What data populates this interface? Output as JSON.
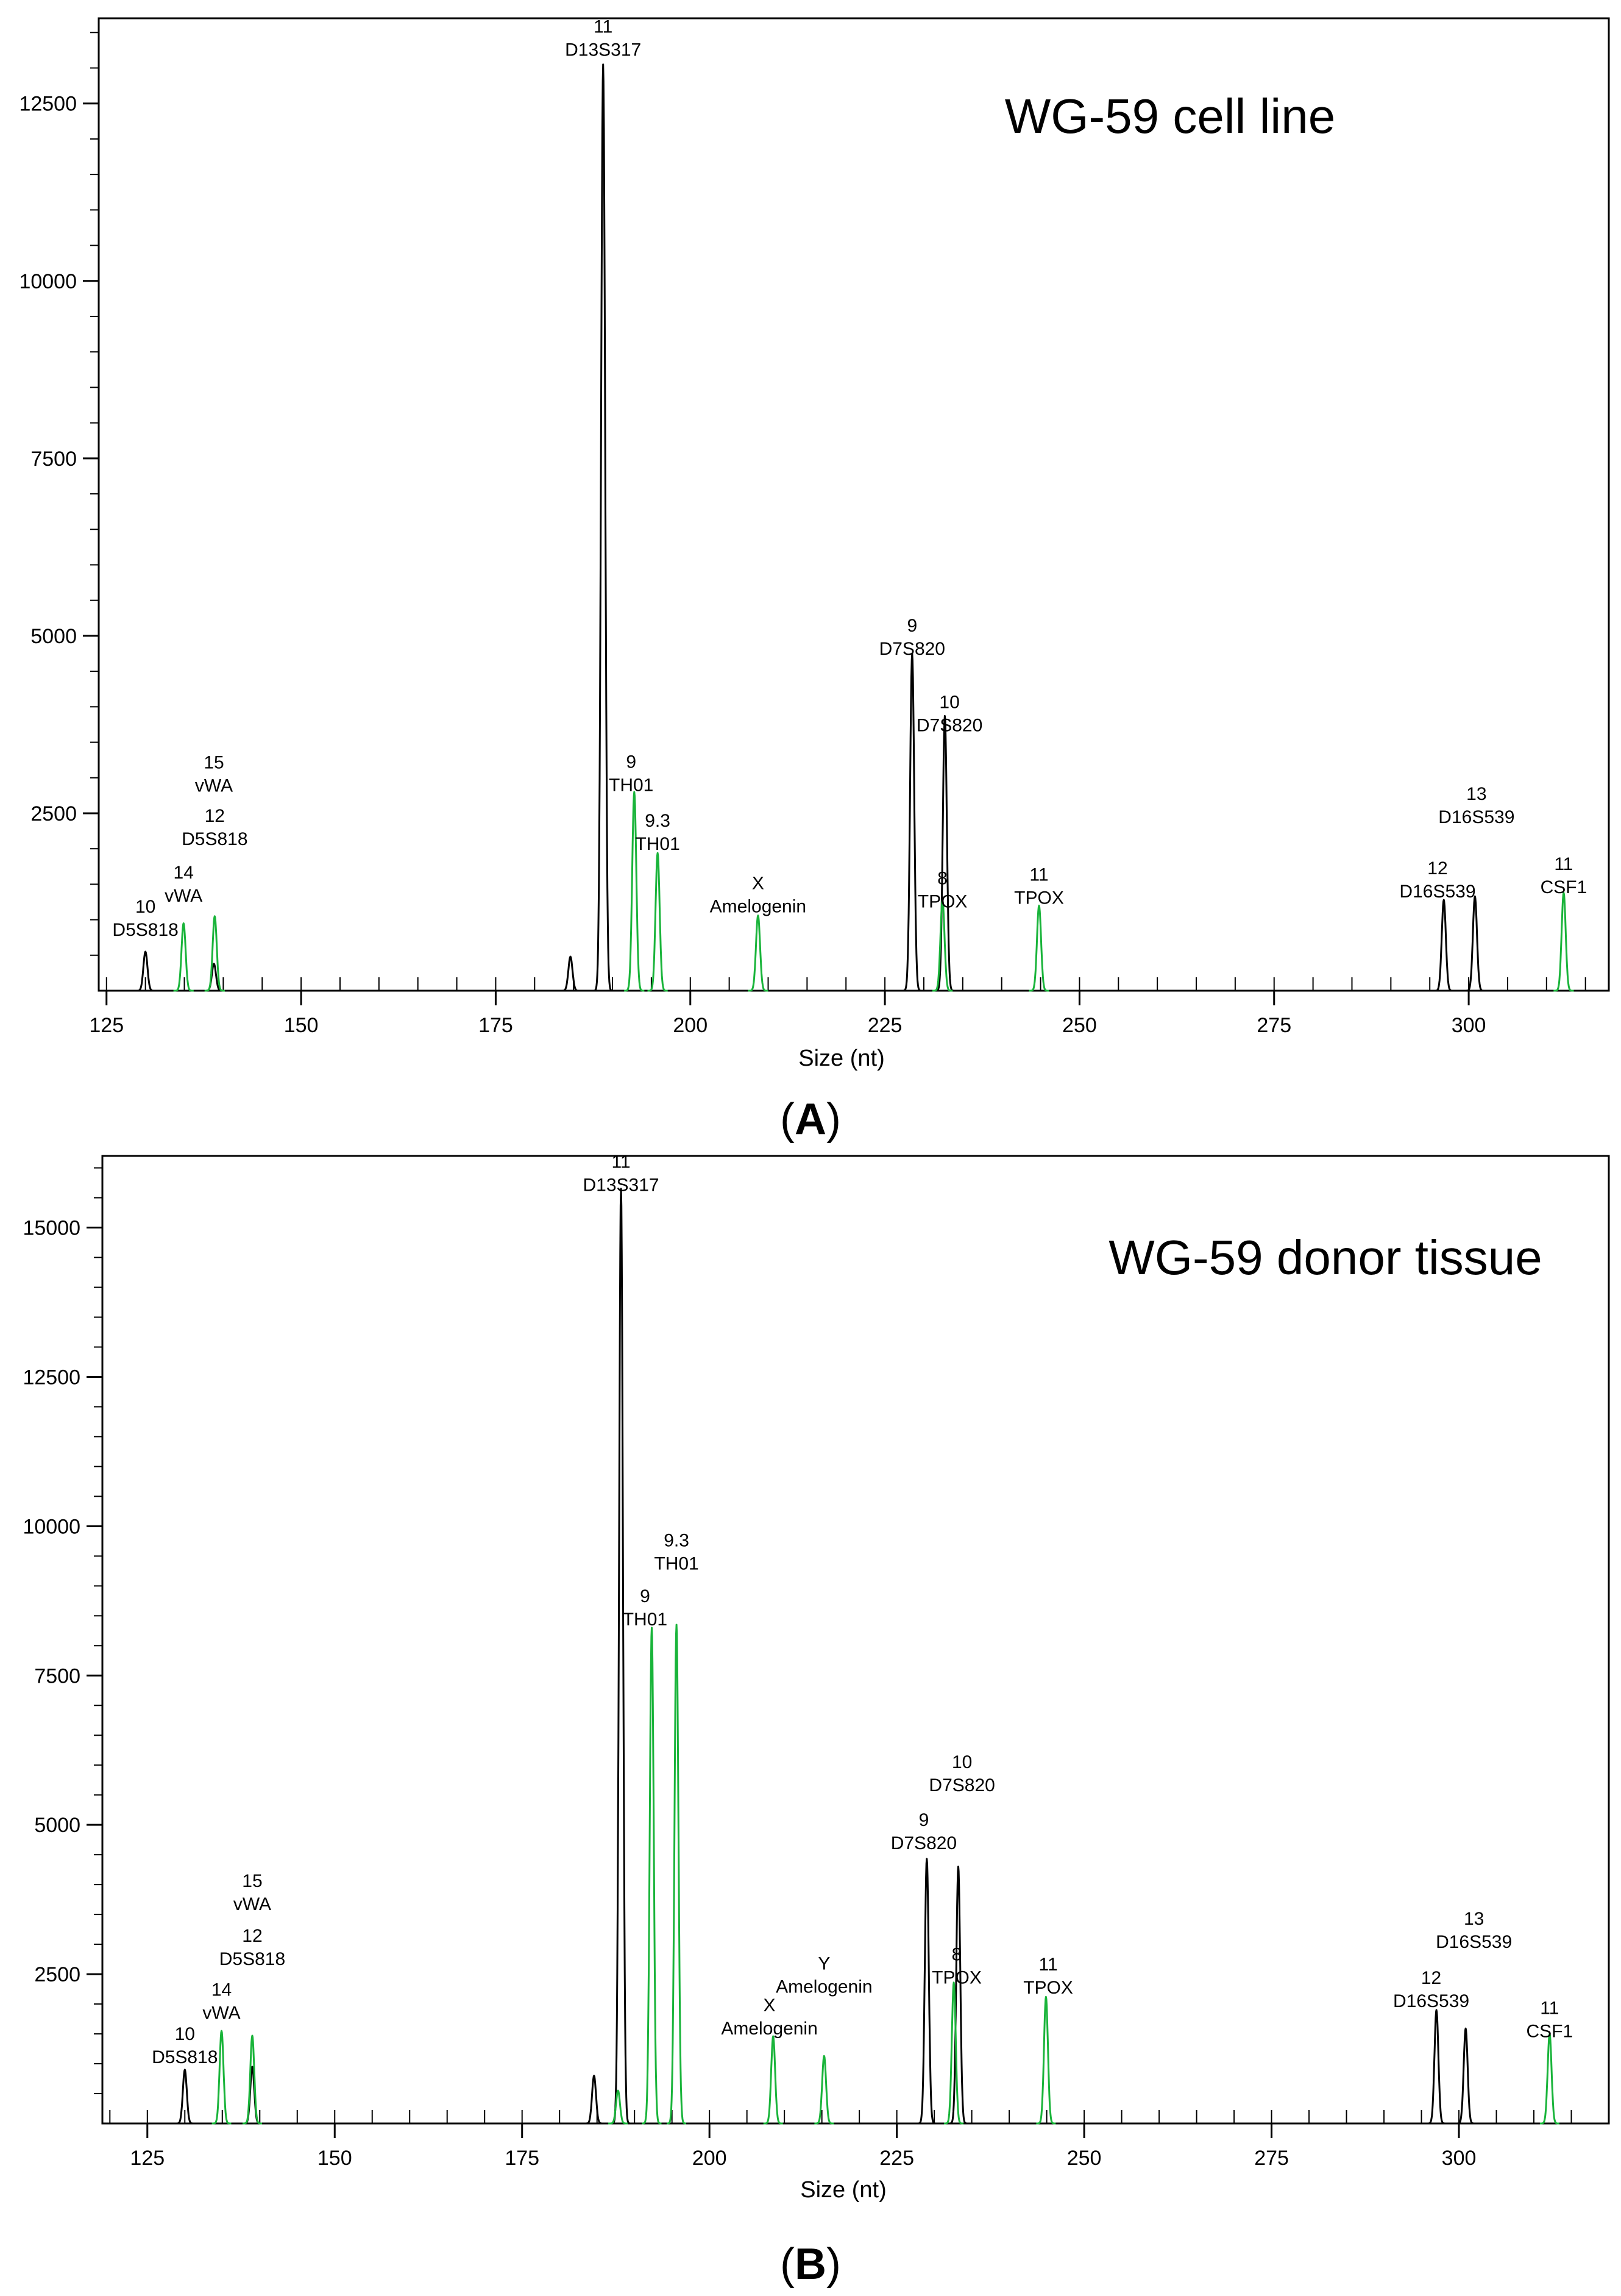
{
  "colors": {
    "black_trace": "#000000",
    "green_trace": "#19b43a",
    "axis": "#000000"
  },
  "chart_data": [
    {
      "type": "line",
      "panel_label": "A",
      "title": "WG-59 cell line",
      "xlabel": "Size (nt)",
      "ylabel": "",
      "xlim": [
        124,
        318
      ],
      "ylim": [
        0,
        13700
      ],
      "x_ticks": [
        125,
        150,
        175,
        200,
        225,
        250,
        275,
        300
      ],
      "y_ticks": [
        2500,
        5000,
        7500,
        10000,
        12500
      ],
      "grid": false,
      "series": [
        {
          "color": "black",
          "peaks": [
            {
              "x": 130.0,
              "y": 550
            },
            {
              "x": 138.8,
              "y": 380
            },
            {
              "x": 184.6,
              "y": 480
            },
            {
              "x": 188.8,
              "y": 13050
            },
            {
              "x": 228.5,
              "y": 4750
            },
            {
              "x": 232.7,
              "y": 3870
            },
            {
              "x": 296.8,
              "y": 1280
            },
            {
              "x": 300.8,
              "y": 1330
            }
          ]
        },
        {
          "color": "green",
          "peaks": [
            {
              "x": 134.9,
              "y": 950
            },
            {
              "x": 138.9,
              "y": 1050
            },
            {
              "x": 192.8,
              "y": 2800
            },
            {
              "x": 195.8,
              "y": 1940
            },
            {
              "x": 208.7,
              "y": 1060
            },
            {
              "x": 232.4,
              "y": 1270
            },
            {
              "x": 244.8,
              "y": 1200
            },
            {
              "x": 312.2,
              "y": 1380
            }
          ]
        }
      ],
      "annotations": [
        {
          "lines": [
            "10",
            "D5S818"
          ],
          "x": 130,
          "y": 1100
        },
        {
          "lines": [
            "14",
            "vWA"
          ],
          "x": 134.9,
          "y": 1580
        },
        {
          "lines": [
            "12",
            "D5S818"
          ],
          "x": 138.9,
          "y": 2380
        },
        {
          "lines": [
            "15",
            "vWA"
          ],
          "x": 138.8,
          "y": 3130
        },
        {
          "lines": [
            "11",
            "D13S317"
          ],
          "x": 188.8,
          "y": 13500
        },
        {
          "lines": [
            "9",
            "TH01"
          ],
          "x": 192.4,
          "y": 3140
        },
        {
          "lines": [
            "9.3",
            "TH01"
          ],
          "x": 195.8,
          "y": 2310
        },
        {
          "lines": [
            "X",
            "Amelogenin"
          ],
          "x": 208.7,
          "y": 1430
        },
        {
          "lines": [
            "9",
            "D7S820"
          ],
          "x": 228.5,
          "y": 5060
        },
        {
          "lines": [
            "10",
            "D7S820"
          ],
          "x": 233.3,
          "y": 3980
        },
        {
          "lines": [
            "8",
            "TPOX"
          ],
          "x": 232.4,
          "y": 1500
        },
        {
          "lines": [
            "11",
            "TPOX"
          ],
          "x": 244.8,
          "y": 1550
        },
        {
          "lines": [
            "12",
            "D16S539"
          ],
          "x": 296.0,
          "y": 1640
        },
        {
          "lines": [
            "13",
            "D16S539"
          ],
          "x": 301.0,
          "y": 2690
        },
        {
          "lines": [
            "11",
            "CSF1"
          ],
          "x": 312.2,
          "y": 1700
        }
      ]
    },
    {
      "type": "line",
      "panel_label": "B",
      "title": "WG-59 donor tissue",
      "xlabel": "Size (nt)",
      "ylabel": "",
      "xlim": [
        119,
        320
      ],
      "ylim": [
        0,
        16200
      ],
      "x_ticks": [
        125,
        150,
        175,
        200,
        225,
        250,
        275,
        300
      ],
      "y_ticks": [
        2500,
        5000,
        7500,
        10000,
        12500,
        15000
      ],
      "grid": false,
      "series": [
        {
          "color": "black",
          "peaks": [
            {
              "x": 130.0,
              "y": 900
            },
            {
              "x": 139.0,
              "y": 950
            },
            {
              "x": 184.6,
              "y": 800
            },
            {
              "x": 188.2,
              "y": 15650
            },
            {
              "x": 229.0,
              "y": 4430
            },
            {
              "x": 233.2,
              "y": 4300
            },
            {
              "x": 297.0,
              "y": 1900
            },
            {
              "x": 300.9,
              "y": 1590
            }
          ]
        },
        {
          "color": "green",
          "peaks": [
            {
              "x": 134.9,
              "y": 1550
            },
            {
              "x": 139.0,
              "y": 1470
            },
            {
              "x": 187.8,
              "y": 550
            },
            {
              "x": 192.3,
              "y": 8300
            },
            {
              "x": 195.6,
              "y": 8350
            },
            {
              "x": 208.5,
              "y": 1460
            },
            {
              "x": 215.3,
              "y": 1130
            },
            {
              "x": 232.6,
              "y": 2360
            },
            {
              "x": 244.9,
              "y": 2120
            },
            {
              "x": 312.1,
              "y": 1500
            }
          ]
        }
      ],
      "annotations": [
        {
          "lines": [
            "10",
            "D5S818"
          ],
          "x": 130,
          "y": 1400
        },
        {
          "lines": [
            "14",
            "vWA"
          ],
          "x": 134.9,
          "y": 2140
        },
        {
          "lines": [
            "12",
            "D5S818"
          ],
          "x": 139.0,
          "y": 3040
        },
        {
          "lines": [
            "15",
            "vWA"
          ],
          "x": 139.0,
          "y": 3960
        },
        {
          "lines": [
            "11",
            "D13S317"
          ],
          "x": 188.2,
          "y": 16000
        },
        {
          "lines": [
            "9",
            "TH01"
          ],
          "x": 191.4,
          "y": 8730
        },
        {
          "lines": [
            "9.3",
            "TH01"
          ],
          "x": 195.6,
          "y": 9660
        },
        {
          "lines": [
            "X",
            "Amelogenin"
          ],
          "x": 208.0,
          "y": 1880
        },
        {
          "lines": [
            "Y",
            "Amelogenin"
          ],
          "x": 215.3,
          "y": 2580
        },
        {
          "lines": [
            "9",
            "D7S820"
          ],
          "x": 228.6,
          "y": 4980
        },
        {
          "lines": [
            "10",
            "D7S820"
          ],
          "x": 233.7,
          "y": 5950
        },
        {
          "lines": [
            "8",
            "TPOX"
          ],
          "x": 233.0,
          "y": 2730
        },
        {
          "lines": [
            "11",
            "TPOX"
          ],
          "x": 245.2,
          "y": 2560
        },
        {
          "lines": [
            "12",
            "D16S539"
          ],
          "x": 296.3,
          "y": 2340
        },
        {
          "lines": [
            "13",
            "D16S539"
          ],
          "x": 302.0,
          "y": 3330
        },
        {
          "lines": [
            "11",
            "CSF1"
          ],
          "x": 312.1,
          "y": 1830
        }
      ]
    }
  ]
}
